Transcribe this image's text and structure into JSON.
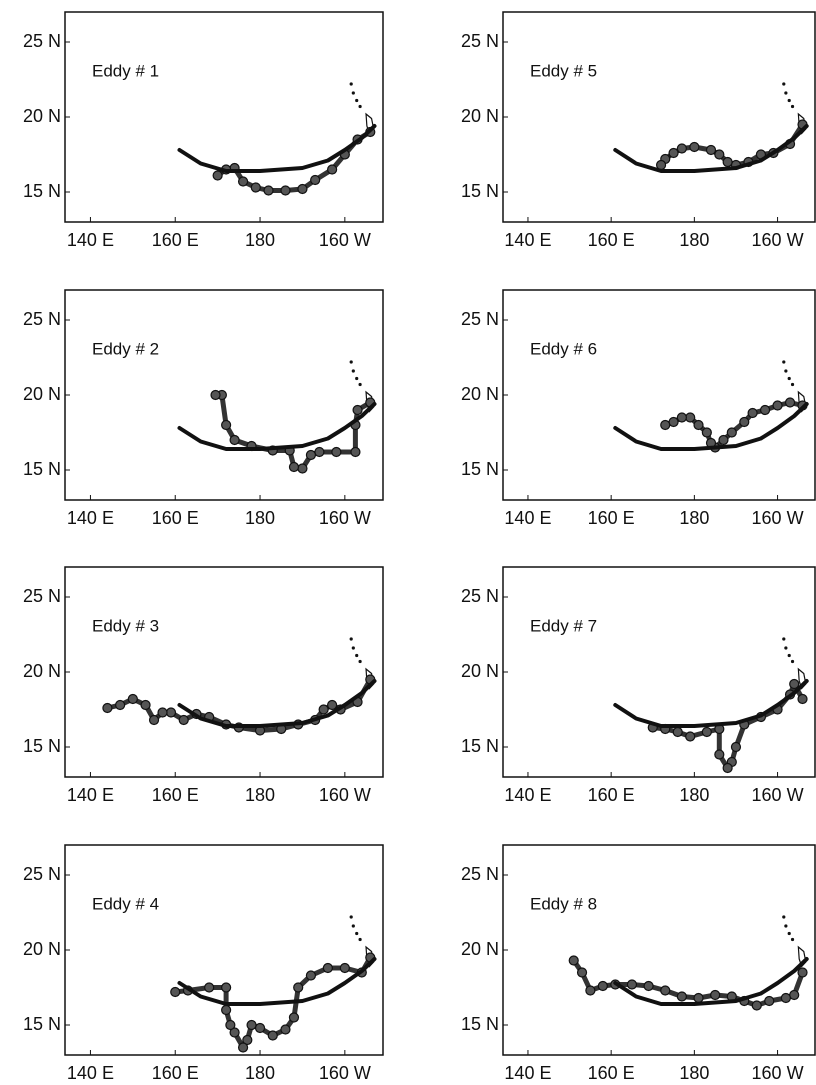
{
  "chart_data": [
    {
      "type": "line",
      "title": "Eddy # 1",
      "xlim": [
        134,
        209
      ],
      "ylim": [
        13,
        27
      ],
      "xticks": [
        {
          "value": 140,
          "label": "140 E"
        },
        {
          "value": 160,
          "label": "160 E"
        },
        180,
        {
          "value": 200,
          "label": "160 W"
        }
      ],
      "yticks": [
        {
          "value": 15,
          "label": "15 N"
        },
        {
          "value": 20,
          "label": "20 N"
        },
        {
          "value": 25,
          "label": "25 N"
        }
      ],
      "series": [
        {
          "color": "#333333",
          "markers": true,
          "x": [
            206,
            203,
            200,
            197,
            193,
            190,
            186,
            182,
            179,
            176,
            174,
            172,
            170
          ],
          "values": [
            19,
            18.5,
            17.5,
            16.5,
            15.8,
            15.2,
            15.1,
            15.1,
            15.3,
            15.7,
            16.6,
            16.5,
            16.1
          ]
        },
        {
          "color": "#111111",
          "markers": false,
          "x": [
            161,
            166,
            172,
            180,
            190,
            196,
            200,
            204,
            207
          ],
          "values": [
            17.8,
            16.9,
            16.4,
            16.4,
            16.6,
            17.1,
            17.8,
            18.6,
            19.4
          ]
        }
      ]
    },
    {
      "type": "line",
      "title": "Eddy # 2",
      "xlim": [
        134,
        209
      ],
      "ylim": [
        13,
        27
      ],
      "xticks": [
        {
          "value": 140,
          "label": "140 E"
        },
        {
          "value": 160,
          "label": "160 E"
        },
        180,
        {
          "value": 200,
          "label": "160 W"
        }
      ],
      "yticks": [
        {
          "value": 15,
          "label": "15 N"
        },
        {
          "value": 20,
          "label": "20 N"
        },
        {
          "value": 25,
          "label": "25 N"
        }
      ],
      "series": [
        {
          "color": "#333333",
          "markers": true,
          "x": [
            206,
            203,
            202.5,
            202.5,
            198,
            194,
            192,
            190,
            188,
            187,
            183,
            178,
            174,
            172,
            171,
            169.5
          ],
          "values": [
            19.5,
            19,
            18,
            16.2,
            16.2,
            16.2,
            16,
            15.1,
            15.2,
            16.3,
            16.3,
            16.6,
            17,
            18,
            20,
            20
          ]
        },
        {
          "color": "#111111",
          "markers": false,
          "x": [
            161,
            166,
            172,
            180,
            190,
            196,
            200,
            204,
            207
          ],
          "values": [
            17.8,
            16.9,
            16.4,
            16.4,
            16.6,
            17.1,
            17.8,
            18.6,
            19.4
          ]
        }
      ]
    },
    {
      "type": "line",
      "title": "Eddy # 3",
      "xlim": [
        134,
        209
      ],
      "ylim": [
        13,
        27
      ],
      "xticks": [
        {
          "value": 140,
          "label": "140 E"
        },
        {
          "value": 160,
          "label": "160 E"
        },
        180,
        {
          "value": 200,
          "label": "160 W"
        }
      ],
      "yticks": [
        {
          "value": 15,
          "label": "15 N"
        },
        {
          "value": 20,
          "label": "20 N"
        },
        {
          "value": 25,
          "label": "25 N"
        }
      ],
      "series": [
        {
          "color": "#333333",
          "markers": true,
          "x": [
            206,
            203,
            199,
            197,
            195,
            193,
            189,
            185,
            180,
            175,
            172,
            168,
            165,
            162,
            159,
            157,
            155,
            153,
            150,
            147,
            144
          ],
          "values": [
            19.5,
            18,
            17.5,
            17.8,
            17.5,
            16.8,
            16.5,
            16.2,
            16.1,
            16.3,
            16.5,
            17,
            17.2,
            16.8,
            17.3,
            17.3,
            16.8,
            17.8,
            18.2,
            17.8,
            17.6
          ]
        },
        {
          "color": "#111111",
          "markers": false,
          "x": [
            161,
            166,
            172,
            180,
            190,
            196,
            200,
            204,
            207
          ],
          "values": [
            17.8,
            16.9,
            16.4,
            16.4,
            16.6,
            17.1,
            17.8,
            18.6,
            19.4
          ]
        }
      ]
    },
    {
      "type": "line",
      "title": "Eddy # 4",
      "xlim": [
        134,
        209
      ],
      "ylim": [
        13,
        27
      ],
      "xticks": [
        {
          "value": 140,
          "label": "140 E"
        },
        {
          "value": 160,
          "label": "160 E"
        },
        180,
        {
          "value": 200,
          "label": "160 W"
        }
      ],
      "yticks": [
        {
          "value": 15,
          "label": "15 N"
        },
        {
          "value": 20,
          "label": "20 N"
        },
        {
          "value": 25,
          "label": "25 N"
        }
      ],
      "series": [
        {
          "color": "#333333",
          "markers": true,
          "x": [
            206,
            204,
            200,
            196,
            192,
            189,
            188,
            186,
            183,
            180,
            178,
            177,
            176,
            174,
            173,
            172,
            172,
            168,
            163,
            160
          ],
          "values": [
            19.5,
            18.5,
            18.8,
            18.8,
            18.3,
            17.5,
            15.5,
            14.7,
            14.3,
            14.8,
            15,
            14,
            13.5,
            14.5,
            15,
            16,
            17.5,
            17.5,
            17.3,
            17.2
          ]
        },
        {
          "color": "#111111",
          "markers": false,
          "x": [
            161,
            166,
            172,
            180,
            190,
            196,
            200,
            204,
            207
          ],
          "values": [
            17.8,
            16.9,
            16.4,
            16.4,
            16.6,
            17.1,
            17.8,
            18.6,
            19.4
          ]
        }
      ]
    },
    {
      "type": "line",
      "title": "Eddy # 5",
      "xlim": [
        134,
        209
      ],
      "ylim": [
        13,
        27
      ],
      "xticks": [
        {
          "value": 140,
          "label": "140 E"
        },
        {
          "value": 160,
          "label": "160 E"
        },
        180,
        {
          "value": 200,
          "label": "160 W"
        }
      ],
      "yticks": [
        {
          "value": 15,
          "label": "15 N"
        },
        {
          "value": 20,
          "label": "20 N"
        },
        {
          "value": 25,
          "label": "25 N"
        }
      ],
      "series": [
        {
          "color": "#333333",
          "markers": true,
          "x": [
            206,
            203,
            199,
            196,
            193,
            190,
            188,
            186,
            184,
            180,
            177,
            175,
            173,
            172
          ],
          "values": [
            19.5,
            18.2,
            17.6,
            17.5,
            17,
            16.8,
            17,
            17.5,
            17.8,
            18,
            17.9,
            17.6,
            17.2,
            16.8
          ]
        },
        {
          "color": "#111111",
          "markers": false,
          "x": [
            161,
            166,
            172,
            180,
            190,
            196,
            200,
            204,
            207
          ],
          "values": [
            17.8,
            16.9,
            16.4,
            16.4,
            16.6,
            17.1,
            17.8,
            18.6,
            19.4
          ]
        }
      ]
    },
    {
      "type": "line",
      "title": "Eddy # 6",
      "xlim": [
        134,
        209
      ],
      "ylim": [
        13,
        27
      ],
      "xticks": [
        {
          "value": 140,
          "label": "140 E"
        },
        {
          "value": 160,
          "label": "160 E"
        },
        180,
        {
          "value": 200,
          "label": "160 W"
        }
      ],
      "yticks": [
        {
          "value": 15,
          "label": "15 N"
        },
        {
          "value": 20,
          "label": "20 N"
        },
        {
          "value": 25,
          "label": "25 N"
        }
      ],
      "series": [
        {
          "color": "#333333",
          "markers": true,
          "x": [
            206,
            203,
            200,
            197,
            194,
            192,
            189,
            187,
            185,
            184,
            183,
            181,
            179,
            177,
            175,
            173
          ],
          "values": [
            19.3,
            19.5,
            19.3,
            19,
            18.8,
            18.2,
            17.5,
            17,
            16.5,
            16.8,
            17.5,
            18,
            18.5,
            18.5,
            18.2,
            18
          ]
        },
        {
          "color": "#111111",
          "markers": false,
          "x": [
            161,
            166,
            172,
            180,
            190,
            196,
            200,
            204,
            207
          ],
          "values": [
            17.8,
            16.9,
            16.4,
            16.4,
            16.6,
            17.1,
            17.8,
            18.6,
            19.4
          ]
        }
      ]
    },
    {
      "type": "line",
      "title": "Eddy # 7",
      "xlim": [
        134,
        209
      ],
      "ylim": [
        13,
        27
      ],
      "xticks": [
        {
          "value": 140,
          "label": "140 E"
        },
        {
          "value": 160,
          "label": "160 E"
        },
        180,
        {
          "value": 200,
          "label": "160 W"
        }
      ],
      "yticks": [
        {
          "value": 15,
          "label": "15 N"
        },
        {
          "value": 20,
          "label": "20 N"
        },
        {
          "value": 25,
          "label": "25 N"
        }
      ],
      "series": [
        {
          "color": "#333333",
          "markers": true,
          "x": [
            206,
            204,
            203,
            200,
            196,
            192,
            190,
            189,
            188,
            186,
            186,
            183,
            179,
            176,
            173,
            170
          ],
          "values": [
            18.2,
            19.2,
            18.5,
            17.5,
            17,
            16.5,
            15,
            14,
            13.6,
            14.5,
            16.2,
            16,
            15.7,
            16,
            16.2,
            16.3
          ]
        },
        {
          "color": "#111111",
          "markers": false,
          "x": [
            161,
            166,
            172,
            180,
            190,
            196,
            200,
            204,
            207
          ],
          "values": [
            17.8,
            16.9,
            16.4,
            16.4,
            16.6,
            17.1,
            17.8,
            18.6,
            19.4
          ]
        }
      ]
    },
    {
      "type": "line",
      "title": "Eddy # 8",
      "xlim": [
        134,
        209
      ],
      "ylim": [
        13,
        27
      ],
      "xticks": [
        {
          "value": 140,
          "label": "140 E"
        },
        {
          "value": 160,
          "label": "160 E"
        },
        180,
        {
          "value": 200,
          "label": "160 W"
        }
      ],
      "yticks": [
        {
          "value": 15,
          "label": "15 N"
        },
        {
          "value": 20,
          "label": "20 N"
        },
        {
          "value": 25,
          "label": "25 N"
        }
      ],
      "series": [
        {
          "color": "#333333",
          "markers": true,
          "x": [
            206,
            204,
            202,
            198,
            195,
            192,
            189,
            185,
            181,
            177,
            173,
            169,
            165,
            161,
            158,
            155,
            153,
            151
          ],
          "values": [
            18.5,
            17,
            16.8,
            16.6,
            16.3,
            16.6,
            16.9,
            17,
            16.8,
            16.9,
            17.3,
            17.6,
            17.7,
            17.7,
            17.6,
            17.3,
            18.5,
            19.3
          ]
        },
        {
          "color": "#111111",
          "markers": false,
          "x": [
            161,
            166,
            172,
            180,
            190,
            196,
            200,
            204,
            207
          ],
          "values": [
            17.8,
            16.9,
            16.4,
            16.4,
            16.6,
            17.1,
            17.8,
            18.6,
            19.4
          ]
        }
      ]
    }
  ]
}
